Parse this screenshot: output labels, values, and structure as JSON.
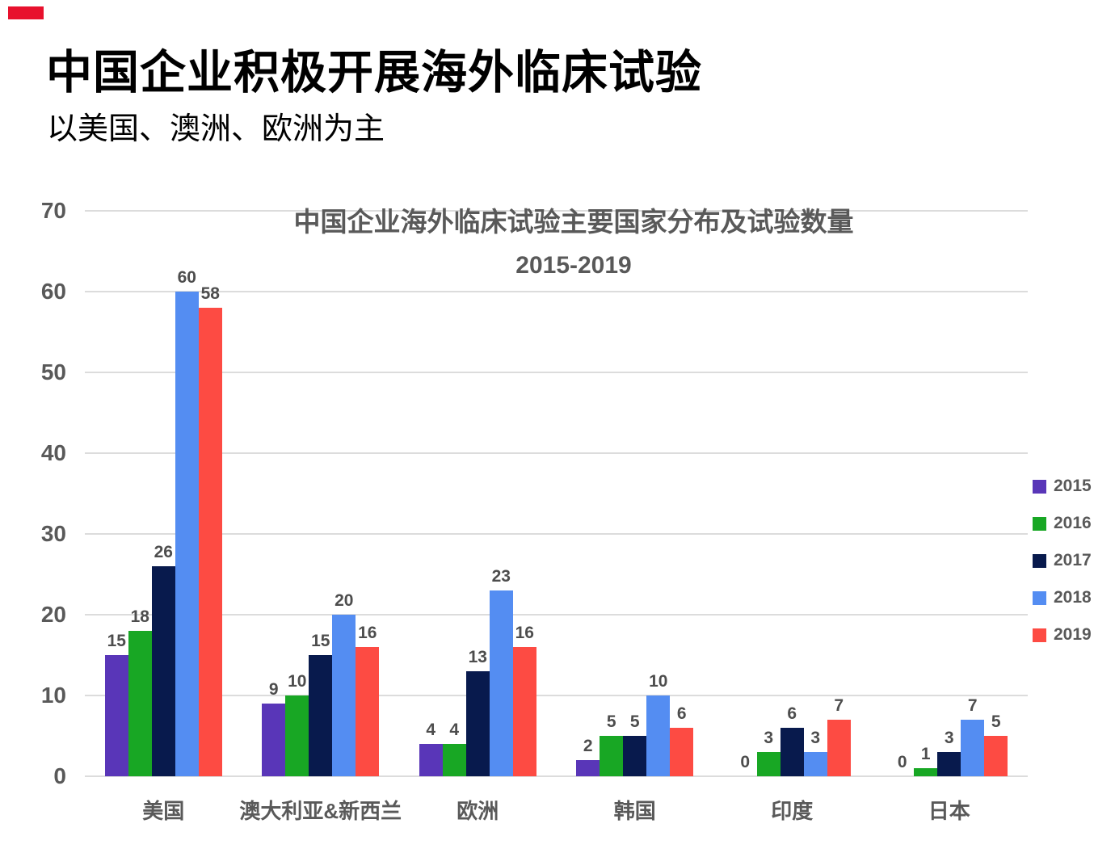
{
  "page": {
    "title": "中国企业积极开展海外临床试验",
    "subtitle": "以美国、澳洲、欧洲为主",
    "background": "#FFFFFF",
    "accent_mark_color": "#E8112D"
  },
  "chart_data": {
    "type": "bar",
    "title": "中国企业海外临床试验主要国家分布及试验数量",
    "subtitle": "2015-2019",
    "categories": [
      "美国",
      "澳大利亚&新西兰",
      "欧洲",
      "韩国",
      "印度",
      "日本"
    ],
    "series": [
      {
        "name": "2015",
        "color": "#5936B8",
        "values": [
          15,
          9,
          4,
          2,
          0,
          0
        ]
      },
      {
        "name": "2016",
        "color": "#18A724",
        "values": [
          18,
          10,
          4,
          5,
          3,
          1
        ]
      },
      {
        "name": "2017",
        "color": "#081A4D",
        "values": [
          26,
          15,
          13,
          5,
          6,
          3
        ]
      },
      {
        "name": "2018",
        "color": "#548DF2",
        "values": [
          60,
          20,
          23,
          10,
          3,
          7
        ]
      },
      {
        "name": "2019",
        "color": "#FD4B43",
        "values": [
          58,
          16,
          16,
          6,
          7,
          5
        ]
      }
    ],
    "ylim": [
      0,
      70
    ],
    "yticks": [
      0,
      10,
      20,
      30,
      40,
      50,
      60,
      70
    ],
    "grid": true,
    "legend_position": "right",
    "show_data_labels": true,
    "colors": {
      "grid": "#DCDCDC",
      "axis_text": "#595959",
      "category_text": "#595959",
      "data_label_text": "#4D4D4D",
      "chart_title_text": "#595959",
      "legend_text": "#595959"
    }
  }
}
